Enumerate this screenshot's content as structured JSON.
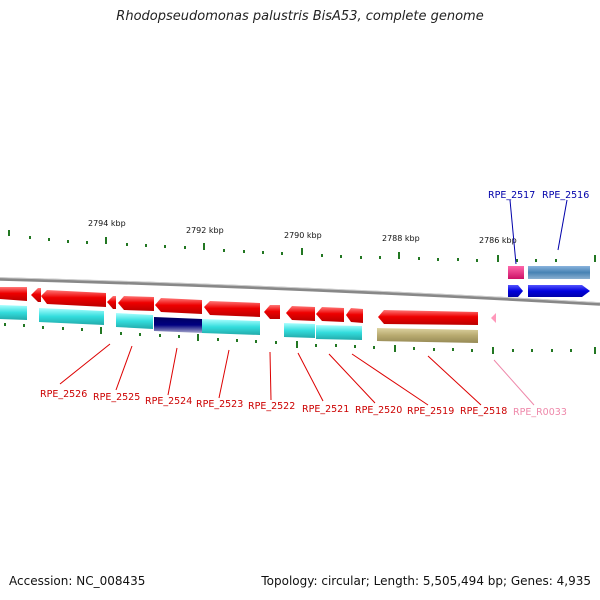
{
  "title": "Rhodopseudomonas palustris BisA53, complete genome",
  "accession": "Accession: NC_008435",
  "summary": "Topology: circular; Length: 5,505,494 bp; Genes: 4,935",
  "scale_labels": [
    "2794 kbp",
    "2792 kbp",
    "2790 kbp",
    "2788 kbp",
    "2786 kbp"
  ],
  "gene_labels": {
    "top": [
      "RPE_2517",
      "RPE_2516"
    ],
    "bottom": [
      "RPE_2526",
      "RPE_2525",
      "RPE_2524",
      "RPE_2523",
      "RPE_2522",
      "RPE_2521",
      "RPE_2520",
      "RPE_2519",
      "RPE_2518",
      "RPE_R0033"
    ]
  },
  "colors": {
    "gene_reverse": "#ee0000",
    "gene_forward": "#0000dd",
    "cds": "#33dddd",
    "rrna_trna": "#ff99bb",
    "dark_feature": "#000080",
    "olive_feature": "#b8aa70",
    "steel_feature": "#4682b4",
    "tick": "#227722",
    "label_red": "#cc0000",
    "label_blue": "#0000aa",
    "label_pink": "#ee88aa"
  }
}
